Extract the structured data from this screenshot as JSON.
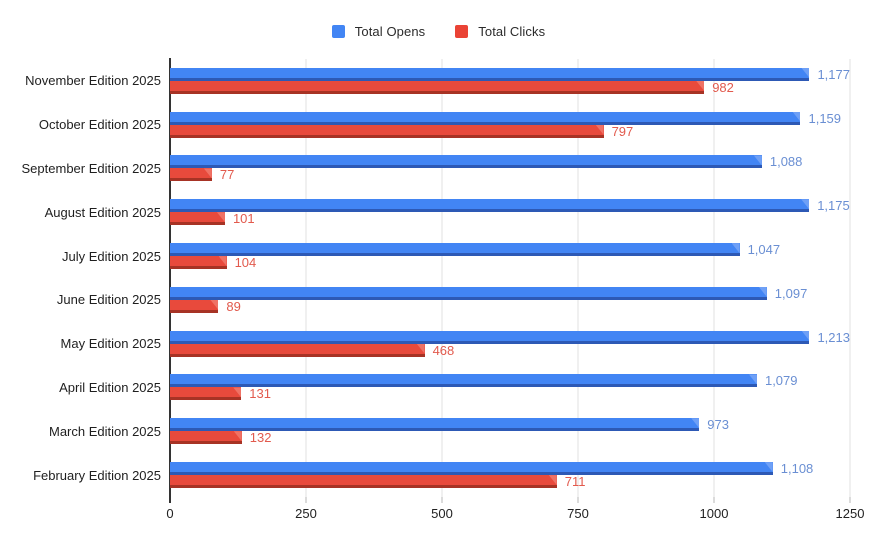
{
  "legend": [
    {
      "label": "Total Opens",
      "color": "#4285f4"
    },
    {
      "label": "Total Clicks",
      "color": "#ea4335"
    }
  ],
  "chart_data": {
    "type": "bar",
    "orientation": "horizontal",
    "title": "",
    "xlabel": "",
    "ylabel": "",
    "categories": [
      "November Edition 2025",
      "October Edition 2025",
      "September Edition 2025",
      "August Edition 2025",
      "July Edition 2025",
      "June Edition 2025",
      "May Edition 2025",
      "April Edition 2025",
      "March Edition 2025",
      "February Edition 2025"
    ],
    "series": [
      {
        "name": "Total Opens",
        "color": "#4285f4",
        "values": [
          1177,
          1159,
          1088,
          1175,
          1047,
          1097,
          1213,
          1079,
          973,
          1108
        ],
        "labels": [
          "1,177",
          "1,159",
          "1,088",
          "1,175",
          "1,047",
          "1,097",
          "1,213",
          "1,079",
          "973",
          "1,108"
        ]
      },
      {
        "name": "Total Clicks",
        "color": "#ea4335",
        "values": [
          982,
          797,
          77,
          101,
          104,
          89,
          468,
          131,
          132,
          711
        ],
        "labels": [
          "982",
          "797",
          "77",
          "101",
          "104",
          "89",
          "468",
          "131",
          "132",
          "711"
        ]
      }
    ],
    "xlim": [
      0,
      1250
    ],
    "x_ticks": [
      0,
      250,
      500,
      750,
      1000,
      1250
    ],
    "x_tick_labels": [
      "0",
      "250",
      "500",
      "750",
      "1000",
      "1250"
    ],
    "grid": true,
    "legend_position": "top"
  }
}
